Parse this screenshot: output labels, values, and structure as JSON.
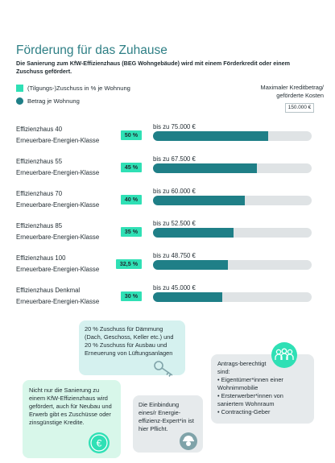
{
  "title": "Förderung für das Zuhause",
  "subtitle": "Die Sanierung zum KfW-Effizienzhaus (BEG Wohngebäude) wird mit einem Förderkredit oder einem Zuschuss gefördert.",
  "legend": {
    "zuschuss": "(Tilgungs-)Zuschuss in % je Wohnung",
    "betrag": "Betrag je Wohnung"
  },
  "max_label": {
    "line1": "Maximaler Kreditbetrag/",
    "line2": "geförderte Kosten"
  },
  "max_value": "150.000 €",
  "colors": {
    "zuschuss": "#2fe0b5",
    "betrag": "#1f7f87",
    "track": "#dfe3e5"
  },
  "chart_data": {
    "type": "bar",
    "orientation": "horizontal",
    "xlim": [
      0,
      150000
    ],
    "categories": [
      {
        "name": "Effizienzhaus 40",
        "sub": "Erneuerbare-Energien-Klasse"
      },
      {
        "name": "Effizienzhaus 55",
        "sub": "Erneuerbare-Energien-Klasse"
      },
      {
        "name": "Effizienzhaus 70",
        "sub": "Erneuerbare-Energien-Klasse"
      },
      {
        "name": "Effizienzhaus 85",
        "sub": "Erneuerbare-Energien-Klasse"
      },
      {
        "name": "Effizienzhaus 100",
        "sub": "Erneuerbare-Energien-Klasse"
      },
      {
        "name": "Effizienzhaus Denkmal",
        "sub": "Erneuerbare-Energien-Klasse"
      }
    ],
    "series": [
      {
        "name": "(Tilgungs-)Zuschuss in % je Wohnung",
        "values": [
          50,
          45,
          40,
          35,
          32.5,
          30
        ],
        "labels": [
          "50 %",
          "45 %",
          "40 %",
          "35 %",
          "32,5 %",
          "30 %"
        ]
      },
      {
        "name": "Betrag je Wohnung",
        "values": [
          75000,
          67500,
          60000,
          52500,
          48750,
          45000
        ],
        "labels": [
          "bis zu 75.000 €",
          "bis zu 67.500 €",
          "bis zu 60.000 €",
          "bis zu 52.500 €",
          "bis zu 48.750 €",
          "bis zu 45.000 €"
        ]
      }
    ]
  },
  "cards": {
    "daemmung": "20 % Zuschuss für Dämmung (Dach, Geschoss, Keller etc.) und 20 % Zuschuss für Ausbau und Erneuerung von Lüftungsanlagen",
    "neubau": "Nicht nur die Sanierung zu einem KfW-Effizienzhaus wird gefördert, auch für Neubau und Erwerb gibt es Zuschüsse oder zinsgünstige Kredite.",
    "experte": "Die Einbindung eines/r Energie-effizienz-Expert*in ist hier Pflicht.",
    "antrag_title": "Antrags-berechtigt sind:",
    "antrag_items": [
      "Eigentümer*innen einer Wohnimmobilie",
      "Ersterwerber*innen von saniertem Wohnraum",
      "Contracting-Geber"
    ]
  },
  "icons": {
    "key": "key-icon",
    "money": "euro-coin-icon",
    "expert": "worker-icon",
    "group": "people-group-icon"
  }
}
